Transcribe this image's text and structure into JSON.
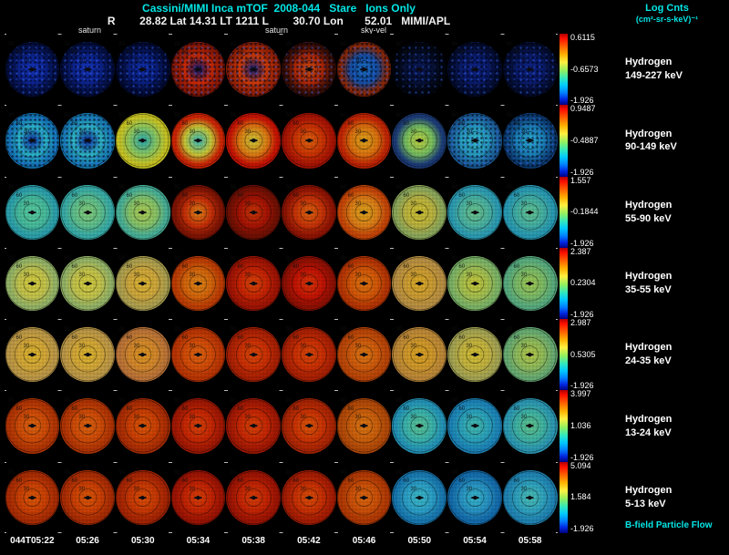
{
  "header": {
    "title": "Cassini/MIMI Inca mTOF  2008-044   Stare   Ions Only",
    "status_line": "R        28.82 Lat 14.31 LT 1211 L        30.70 Lon       52.01   MIMI/APL",
    "legend_title": "Log Cnts",
    "legend_units": "(cm²-sr-s-keV)⁻¹"
  },
  "annotations": [
    {
      "text": "saturn",
      "x": 86
    },
    {
      "text": "saturn",
      "x": 291
    },
    {
      "text": "sky-vel",
      "x": 396
    }
  ],
  "overlay": {
    "ring_labels": [
      "30",
      "60",
      "90"
    ]
  },
  "colorbar_colors": [
    "#b00000 0%",
    "#ff1000 7%",
    "#ff6000 18%",
    "#ffb000 29%",
    "#fff040 40%",
    "#90f060 52%",
    "#30e8c0 63%",
    "#00c8ff 73%",
    "#0080ff 83%",
    "#0028e0 92%",
    "#000080 100%"
  ],
  "time_axis": [
    "044T05:22",
    "05:26",
    "05:30",
    "05:34",
    "05:38",
    "05:42",
    "05:46",
    "05:50",
    "05:54",
    "05:58"
  ],
  "rows": [
    {
      "label_line1": "Hydrogen",
      "label_line2": "149-227 keV",
      "cbar_top": "0.6115",
      "cbar_mid": "-0.6573",
      "cbar_bot": "-1.926",
      "cells": [
        {
          "colors": [
            "#1535c0",
            "#0c2490",
            "#041044"
          ],
          "speckle": true
        },
        {
          "colors": [
            "#1535c0",
            "#0c2490",
            "#041044"
          ],
          "speckle": true
        },
        {
          "colors": [
            "#1030b0",
            "#0a2080",
            "#030c38"
          ],
          "speckle": true
        },
        {
          "colors": [
            "#0a1870",
            "#cc2a06",
            "#8a1804"
          ],
          "speckle": true
        },
        {
          "colors": [
            "#14207a",
            "#d03a08",
            "#962004"
          ],
          "speckle": true
        },
        {
          "colors": [
            "#c84a10",
            "#b02808",
            "#3a0e04"
          ],
          "speckle": true
        },
        {
          "colors": [
            "#1a70c0",
            "#1450a8",
            "#8a2808"
          ],
          "speckle": true
        },
        {
          "colors": [
            "#0a1a5c",
            "#071238",
            "#02060f"
          ],
          "speckle": true
        },
        {
          "colors": [
            "#0e2488",
            "#0a1c6c",
            "#040d30"
          ],
          "speckle": true
        },
        {
          "colors": [
            "#0e2488",
            "#0a1c6c",
            "#040d30"
          ],
          "speckle": true
        }
      ]
    },
    {
      "label_line1": "Hydrogen",
      "label_line2": "90-149 keV",
      "cbar_top": "0.9487",
      "cbar_mid": "-0.4887",
      "cbar_bot": "-1.926",
      "cells": [
        {
          "colors": [
            "#0c2c9c",
            "#2cb8cc",
            "#1478b8"
          ],
          "speckle": true
        },
        {
          "colors": [
            "#0c2c9c",
            "#30b8c8",
            "#1880b8"
          ],
          "speckle": true
        },
        {
          "colors": [
            "#28a8ac",
            "#8cc860",
            "#c8c424"
          ],
          "speckle": false
        },
        {
          "colors": [
            "#38b8b8",
            "#c8c838",
            "#cc2404"
          ],
          "speckle": false
        },
        {
          "colors": [
            "#ccc838",
            "#dc7e14",
            "#c81404"
          ],
          "speckle": false
        },
        {
          "colors": [
            "#dc6410",
            "#cc3404",
            "#a81404"
          ],
          "speckle": false
        },
        {
          "colors": [
            "#dca41c",
            "#dc7410",
            "#c02404"
          ],
          "speckle": false
        },
        {
          "colors": [
            "#bcd040",
            "#78c060",
            "#1c3c78"
          ],
          "speckle": false
        },
        {
          "colors": [
            "#38bcd0",
            "#28a0c4",
            "#1c609c"
          ],
          "speckle": true
        },
        {
          "colors": [
            "#2cb0d0",
            "#1c84bc",
            "#0c4078"
          ],
          "speckle": true
        }
      ]
    },
    {
      "label_line1": "Hydrogen",
      "label_line2": "55-90 keV",
      "cbar_top": "1.557",
      "cbar_mid": "-0.1844",
      "cbar_bot": "-1.926",
      "cells": [
        {
          "colors": [
            "#58cca0",
            "#48bc9c",
            "#2ca0ac"
          ],
          "speckle": false
        },
        {
          "colors": [
            "#84cc78",
            "#60c08c",
            "#38aca8"
          ],
          "speckle": false
        },
        {
          "colors": [
            "#accc54",
            "#88c468",
            "#48b098"
          ],
          "speckle": false
        },
        {
          "colors": [
            "#dc8418",
            "#c83008",
            "#7e1404"
          ],
          "speckle": false
        },
        {
          "colors": [
            "#c83808",
            "#a81404",
            "#701004"
          ],
          "speckle": false
        },
        {
          "colors": [
            "#dc6410",
            "#c83408",
            "#8e1404"
          ],
          "speckle": false
        },
        {
          "colors": [
            "#dca41c",
            "#dc8018",
            "#c44408"
          ],
          "speckle": false
        },
        {
          "colors": [
            "#ccc030",
            "#bcb440",
            "#8ca85c"
          ],
          "speckle": false
        },
        {
          "colors": [
            "#6cc48c",
            "#4cb4a0",
            "#2c9cb4"
          ],
          "speckle": false
        },
        {
          "colors": [
            "#64c490",
            "#44b0a4",
            "#289ab4"
          ],
          "speckle": false
        }
      ]
    },
    {
      "label_line1": "Hydrogen",
      "label_line2": "35-55 keV",
      "cbar_top": "2.387",
      "cbar_mid": "0.2304",
      "cbar_bot": "-1.926",
      "cells": [
        {
          "colors": [
            "#d4cc3c",
            "#c4c44c",
            "#94b468"
          ],
          "speckle": false
        },
        {
          "colors": [
            "#d4cc3c",
            "#c4c44c",
            "#94b468"
          ],
          "speckle": false
        },
        {
          "colors": [
            "#dcb430",
            "#d0a83c",
            "#aca050"
          ],
          "speckle": false
        },
        {
          "colors": [
            "#dc8418",
            "#d4660c",
            "#bc3c04"
          ],
          "speckle": false
        },
        {
          "colors": [
            "#d84808",
            "#c82404",
            "#9e1404"
          ],
          "speckle": false
        },
        {
          "colors": [
            "#d83808",
            "#c41404",
            "#8e1004"
          ],
          "speckle": false
        },
        {
          "colors": [
            "#dc7410",
            "#d45808",
            "#b43404"
          ],
          "speckle": false
        },
        {
          "colors": [
            "#dcac24",
            "#cc9c34",
            "#b89044"
          ],
          "speckle": false
        },
        {
          "colors": [
            "#c8c838",
            "#a4c050",
            "#7cb468"
          ],
          "speckle": false
        },
        {
          "colors": [
            "#a0c850",
            "#7cbc68",
            "#58ac80"
          ],
          "speckle": false
        }
      ]
    },
    {
      "label_line1": "Hydrogen",
      "label_line2": "24-35 keV",
      "cbar_top": "2.987",
      "cbar_mid": "0.5305",
      "cbar_bot": "-1.926",
      "cells": [
        {
          "colors": [
            "#dcb42c",
            "#d4a838",
            "#bc9848"
          ],
          "speckle": false
        },
        {
          "colors": [
            "#dcb42c",
            "#d4a838",
            "#bc9848"
          ],
          "speckle": false
        },
        {
          "colors": [
            "#dc9420",
            "#d4882c",
            "#bc7438"
          ],
          "speckle": false
        },
        {
          "colors": [
            "#dc6410",
            "#d44c08",
            "#b83404"
          ],
          "speckle": false
        },
        {
          "colors": [
            "#d84808",
            "#cc3004",
            "#a82004"
          ],
          "speckle": false
        },
        {
          "colors": [
            "#d84808",
            "#cc3004",
            "#a82004"
          ],
          "speckle": false
        },
        {
          "colors": [
            "#dc7814",
            "#d05c0c",
            "#b84408"
          ],
          "speckle": false
        },
        {
          "colors": [
            "#dca420",
            "#d0982c",
            "#bc8838"
          ],
          "speckle": false
        },
        {
          "colors": [
            "#d4c032",
            "#c4b440",
            "#a4a454"
          ],
          "speckle": false
        },
        {
          "colors": [
            "#b4c848",
            "#90bc5c",
            "#68ac74"
          ],
          "speckle": false
        }
      ]
    },
    {
      "label_line1": "Hydrogen",
      "label_line2": "13-24 keV",
      "cbar_top": "3.997",
      "cbar_mid": "1.036",
      "cbar_bot": "-1.926",
      "cells": [
        {
          "colors": [
            "#dc6410",
            "#d04c08",
            "#b03404"
          ],
          "speckle": false
        },
        {
          "colors": [
            "#dc6410",
            "#d04c08",
            "#b03404"
          ],
          "speckle": false
        },
        {
          "colors": [
            "#dc5808",
            "#cc4004",
            "#a82c04"
          ],
          "speckle": false
        },
        {
          "colors": [
            "#d84408",
            "#c82804",
            "#a01804"
          ],
          "speckle": false
        },
        {
          "colors": [
            "#d84408",
            "#c82804",
            "#a01804"
          ],
          "speckle": false
        },
        {
          "colors": [
            "#dc5808",
            "#cc3404",
            "#a82404"
          ],
          "speckle": false
        },
        {
          "colors": [
            "#dc7814",
            "#cc600c",
            "#b04808"
          ],
          "speckle": false
        },
        {
          "colors": [
            "#5cc494",
            "#3cb4ac",
            "#2494b8"
          ],
          "speckle": false
        },
        {
          "colors": [
            "#44bcac",
            "#2ca4bc",
            "#1c84b8"
          ],
          "speckle": false
        },
        {
          "colors": [
            "#60c48c",
            "#40b4a4",
            "#2c98b4"
          ],
          "speckle": false
        }
      ]
    },
    {
      "label_line1": "Hydrogen",
      "label_line2": "5-13 keV",
      "cbar_top": "5.094",
      "cbar_mid": "1.584",
      "cbar_bot": "-1.926",
      "extra_label": "B-field Particle Flow",
      "cells": [
        {
          "colors": [
            "#dc5808",
            "#cc4004",
            "#a82c04"
          ],
          "speckle": false
        },
        {
          "colors": [
            "#dc5808",
            "#cc4004",
            "#a82c04"
          ],
          "speckle": false
        },
        {
          "colors": [
            "#dc5008",
            "#c83804",
            "#a42404"
          ],
          "speckle": false
        },
        {
          "colors": [
            "#d84008",
            "#c42404",
            "#9c1404"
          ],
          "speckle": false
        },
        {
          "colors": [
            "#d84008",
            "#c42404",
            "#9c1404"
          ],
          "speckle": false
        },
        {
          "colors": [
            "#dc5008",
            "#c83004",
            "#a41c04"
          ],
          "speckle": false
        },
        {
          "colors": [
            "#dc6810",
            "#cc5008",
            "#b03804"
          ],
          "speckle": false
        },
        {
          "colors": [
            "#3cbcc8",
            "#2ca0c8",
            "#1878b0"
          ],
          "speckle": false
        },
        {
          "colors": [
            "#38b8cc",
            "#2894c4",
            "#146cac"
          ],
          "speckle": false
        },
        {
          "colors": [
            "#4cc0b4",
            "#30a4c0",
            "#2084b4"
          ],
          "speckle": false
        }
      ]
    }
  ],
  "chart_data": {
    "type": "heatmap",
    "title": "Cassini/MIMI Inca mTOF 2008-044 Stare Ions Only",
    "instrument": "MIMI/APL",
    "colorbar_label": "Log Cnts (cm²-sr-s-keV)⁻¹",
    "x": [
      "044T05:22",
      "05:26",
      "05:30",
      "05:34",
      "05:38",
      "05:42",
      "05:46",
      "05:50",
      "05:54",
      "05:58"
    ],
    "series": [
      {
        "name": "Hydrogen 149-227 keV",
        "scale_min": -1.926,
        "scale_mid": -0.6573,
        "scale_max": 0.6115
      },
      {
        "name": "Hydrogen 90-149 keV",
        "scale_min": -1.926,
        "scale_mid": -0.4887,
        "scale_max": 0.9487
      },
      {
        "name": "Hydrogen 55-90 keV",
        "scale_min": -1.926,
        "scale_mid": -0.1844,
        "scale_max": 1.557
      },
      {
        "name": "Hydrogen 35-55 keV",
        "scale_min": -1.926,
        "scale_mid": 0.2304,
        "scale_max": 2.387
      },
      {
        "name": "Hydrogen 24-35 keV",
        "scale_min": -1.926,
        "scale_mid": 0.5305,
        "scale_max": 2.987
      },
      {
        "name": "Hydrogen 13-24 keV",
        "scale_min": -1.926,
        "scale_mid": 1.036,
        "scale_max": 3.997
      },
      {
        "name": "Hydrogen 5-13 keV",
        "scale_min": -1.926,
        "scale_mid": 1.584,
        "scale_max": 5.094
      }
    ],
    "spacecraft_state": {
      "R": 28.82,
      "Lat": 14.31,
      "LT": "1211",
      "L": 30.7,
      "Lon": 52.01
    },
    "polar_ring_labels_deg": [
      30,
      60,
      90
    ]
  }
}
